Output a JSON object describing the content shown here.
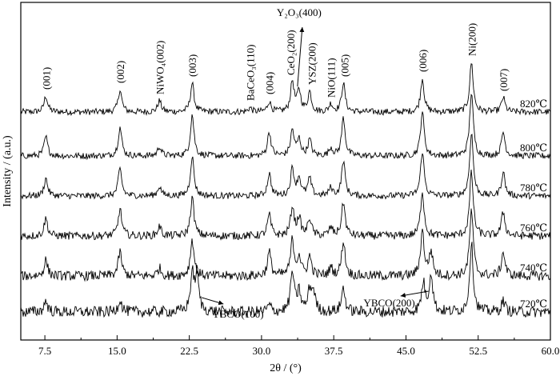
{
  "chart_data": {
    "type": "line",
    "title": "",
    "xlabel": "2θ / (°)",
    "ylabel": "Intensity / (a.u.)",
    "xlim": [
      5.0,
      60.0
    ],
    "xticks": [
      "7.5",
      "15.0",
      "22.5",
      "30.0",
      "37.5",
      "45.0",
      "52.5",
      "60.0"
    ],
    "xtick_values": [
      7.5,
      15.0,
      22.5,
      30.0,
      37.5,
      45.0,
      52.5,
      60.0
    ],
    "grid": false,
    "series": [
      {
        "name": "820℃",
        "offset": 280,
        "noise": 4,
        "peaks": [
          [
            7.6,
            20
          ],
          [
            15.3,
            28
          ],
          [
            19.4,
            14
          ],
          [
            22.8,
            36
          ],
          [
            28.8,
            5
          ],
          [
            30.8,
            13
          ],
          [
            33.2,
            38
          ],
          [
            33.9,
            26
          ],
          [
            35.0,
            25
          ],
          [
            37.2,
            10
          ],
          [
            38.5,
            36
          ],
          [
            46.7,
            42
          ],
          [
            51.8,
            62
          ],
          [
            55.1,
            18
          ]
        ]
      },
      {
        "name": "800℃",
        "offset": 225,
        "noise": 4,
        "peaks": [
          [
            7.6,
            24
          ],
          [
            15.3,
            36
          ],
          [
            19.4,
            12
          ],
          [
            22.8,
            52
          ],
          [
            30.8,
            30
          ],
          [
            33.2,
            32
          ],
          [
            33.9,
            20
          ],
          [
            35.0,
            20
          ],
          [
            37.2,
            10
          ],
          [
            38.5,
            48
          ],
          [
            46.7,
            56
          ],
          [
            51.8,
            80
          ],
          [
            55.1,
            30
          ]
        ]
      },
      {
        "name": "780℃",
        "offset": 175,
        "noise": 4,
        "peaks": [
          [
            7.6,
            22
          ],
          [
            15.3,
            34
          ],
          [
            19.4,
            12
          ],
          [
            22.8,
            50
          ],
          [
            30.8,
            28
          ],
          [
            33.2,
            34
          ],
          [
            33.9,
            22
          ],
          [
            35.0,
            22
          ],
          [
            37.2,
            10
          ],
          [
            38.5,
            44
          ],
          [
            46.7,
            56
          ],
          [
            51.8,
            80
          ],
          [
            55.1,
            30
          ]
        ]
      },
      {
        "name": "760℃",
        "offset": 125,
        "noise": 5,
        "peaks": [
          [
            7.6,
            22
          ],
          [
            15.3,
            34
          ],
          [
            19.4,
            12
          ],
          [
            22.8,
            48
          ],
          [
            30.8,
            26
          ],
          [
            33.2,
            36
          ],
          [
            33.9,
            22
          ],
          [
            35.0,
            22
          ],
          [
            37.2,
            10
          ],
          [
            38.5,
            42
          ],
          [
            46.7,
            56
          ],
          [
            51.8,
            80
          ],
          [
            55.1,
            30
          ]
        ]
      },
      {
        "name": "740℃",
        "offset": 75,
        "noise": 6,
        "peaks": [
          [
            7.6,
            20
          ],
          [
            15.3,
            30
          ],
          [
            19.4,
            10
          ],
          [
            22.8,
            46
          ],
          [
            30.8,
            30
          ],
          [
            33.2,
            44
          ],
          [
            33.9,
            24
          ],
          [
            35.0,
            24
          ],
          [
            37.2,
            10
          ],
          [
            38.5,
            44
          ],
          [
            46.7,
            56
          ],
          [
            47.6,
            30
          ],
          [
            51.8,
            82
          ],
          [
            55.1,
            30
          ]
        ]
      },
      {
        "name": "720℃",
        "offset": 30,
        "noise": 7,
        "peaks": [
          [
            7.6,
            14
          ],
          [
            15.3,
            16
          ],
          [
            22.8,
            46
          ],
          [
            23.3,
            46
          ],
          [
            30.8,
            8
          ],
          [
            33.2,
            50
          ],
          [
            33.9,
            24
          ],
          [
            35.0,
            26
          ],
          [
            35.4,
            24
          ],
          [
            38.5,
            30
          ],
          [
            46.8,
            36
          ],
          [
            47.6,
            48
          ],
          [
            51.8,
            86
          ],
          [
            55.1,
            14
          ]
        ]
      }
    ],
    "annotations": [
      {
        "text": "(001)",
        "x": 7.6
      },
      {
        "text": "(002)",
        "x": 15.3
      },
      {
        "text": "NiWO₄(002)",
        "x": 19.4
      },
      {
        "text": "(003)",
        "x": 22.8
      },
      {
        "text": "BaCeO₃(110)",
        "x": 28.8
      },
      {
        "text": "(004)",
        "x": 30.8
      },
      {
        "text": "CeO₂(200)",
        "x": 33.0
      },
      {
        "text": "YSZ(200)",
        "x": 35.2
      },
      {
        "text": "NiO(111)",
        "x": 37.2
      },
      {
        "text": "(005)",
        "x": 38.6
      },
      {
        "text": "(006)",
        "x": 46.7
      },
      {
        "text": "Ni(200)",
        "x": 51.8
      },
      {
        "text": "(007)",
        "x": 55.1
      }
    ],
    "arrow_annotations": [
      {
        "text": "Y₂O₃(400)",
        "x": 33.9
      },
      {
        "text": "YBCO(100)",
        "x": 23.3
      },
      {
        "text": "YBCO(200)",
        "x": 47.6
      }
    ]
  }
}
